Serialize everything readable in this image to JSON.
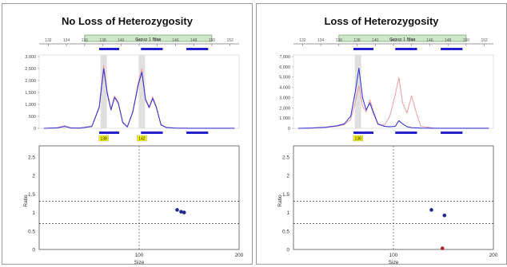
{
  "panels": [
    {
      "title": "No Loss of Heterozygosity",
      "bin_label": "Group 1 Blue",
      "size_ticks": [
        132,
        134,
        136,
        138,
        140,
        142,
        144,
        146,
        148,
        150,
        152
      ],
      "electro_y_ticks": [
        "3,000",
        "2,500",
        "2,000",
        "1,500",
        "1,000",
        "500",
        "0"
      ],
      "peak_labels": [
        "138",
        "142"
      ],
      "ratio_y_ticks": [
        "2.5",
        "2",
        "1.5",
        "1",
        "0.5",
        "0"
      ],
      "ratio_x_ticks": [
        "100",
        "200"
      ],
      "ratio_ylabel": "Ratio",
      "ratio_xlabel": "Size"
    },
    {
      "title": "Loss of Heterozygosity",
      "bin_label": "Group 1 Blue",
      "size_ticks": [
        132,
        134,
        136,
        138,
        140,
        142,
        144,
        146,
        148,
        150,
        152
      ],
      "electro_y_ticks": [
        "7,000",
        "6,000",
        "5,000",
        "4,000",
        "3,000",
        "2,000",
        "1,000",
        "0"
      ],
      "peak_labels": [
        "138"
      ],
      "ratio_y_ticks": [
        "2.5",
        "2",
        "1.5",
        "1",
        "0.5",
        "0"
      ],
      "ratio_x_ticks": [
        "100",
        "200"
      ],
      "ratio_ylabel": "Ratio",
      "ratio_xlabel": "Size"
    }
  ],
  "chart_data": [
    {
      "type": "line",
      "xlim": [
        131,
        153
      ],
      "ylim": [
        0,
        3200
      ],
      "series": [
        {
          "color": "#3b3bd6",
          "x": [
            131.5,
            133,
            133.8,
            134.5,
            135.5,
            136.8,
            137.6,
            138.1,
            138.5,
            138.9,
            139.3,
            139.7,
            140.2,
            140.7,
            141.3,
            141.9,
            142.3,
            142.7,
            143.1,
            143.5,
            143.9,
            144.4,
            145,
            146,
            147.5,
            149,
            151,
            152.5
          ],
          "y": [
            0,
            20,
            80,
            15,
            10,
            80,
            900,
            2600,
            1500,
            800,
            1350,
            1100,
            250,
            60,
            700,
            1900,
            2450,
            1250,
            900,
            1300,
            900,
            150,
            30,
            10,
            5,
            5,
            5,
            5
          ]
        },
        {
          "color": "#ee9c9c",
          "x": [
            131.5,
            133,
            133.8,
            134.5,
            135.5,
            136.8,
            137.6,
            138.1,
            138.5,
            138.9,
            139.3,
            139.7,
            140.2,
            140.7,
            141.3,
            141.9,
            142.3,
            142.7,
            143.1,
            143.5,
            143.9,
            144.4,
            145,
            146,
            147.5,
            149,
            151,
            152.5
          ],
          "y": [
            0,
            30,
            110,
            25,
            15,
            100,
            950,
            2750,
            1600,
            850,
            1420,
            1150,
            280,
            70,
            750,
            2000,
            2600,
            1300,
            950,
            1380,
            950,
            170,
            40,
            15,
            5,
            5,
            5,
            5
          ]
        }
      ],
      "bins": [
        {
          "from": 137.6,
          "to": 139.8
        },
        {
          "from": 142.2,
          "to": 144.6
        },
        {
          "from": 147.2,
          "to": 149.6
        }
      ],
      "highlight_columns": [
        138.1,
        142.3
      ]
    },
    {
      "type": "scatter",
      "xlim": [
        0,
        200
      ],
      "ylim": [
        0,
        2.8
      ],
      "gridlines_y": [
        1.3,
        0.7
      ],
      "gridline_x": 100,
      "points": [
        {
          "x": 138,
          "y": 1.07,
          "color": "#1f2a8a"
        },
        {
          "x": 142,
          "y": 1.02,
          "color": "#1f2a8a"
        },
        {
          "x": 145,
          "y": 1.0,
          "color": "#1f2a8a"
        }
      ]
    },
    {
      "type": "line",
      "xlim": [
        131,
        153
      ],
      "ylim": [
        0,
        7200
      ],
      "series": [
        {
          "color": "#3b3bd6",
          "x": [
            131.5,
            133,
            134.5,
            135.8,
            136.6,
            137.3,
            137.8,
            138.2,
            138.6,
            139,
            139.4,
            139.8,
            140.3,
            141,
            141.6,
            142.2,
            142.6,
            143,
            143.5,
            144,
            145,
            146.5,
            148,
            150,
            152.5
          ],
          "y": [
            0,
            30,
            100,
            250,
            450,
            1200,
            3600,
            5900,
            3000,
            1800,
            2500,
            1500,
            400,
            200,
            150,
            200,
            750,
            450,
            150,
            60,
            20,
            10,
            5,
            5,
            5
          ]
        },
        {
          "color": "#ee9c9c",
          "x": [
            131.5,
            133,
            134.5,
            135.8,
            136.6,
            137.3,
            137.8,
            138.2,
            138.6,
            139,
            139.4,
            139.8,
            140.3,
            141,
            141.6,
            142.2,
            142.6,
            143,
            143.5,
            144,
            144.5,
            145,
            146.5,
            148,
            150,
            152.5
          ],
          "y": [
            0,
            20,
            80,
            200,
            350,
            900,
            2600,
            4200,
            2200,
            1600,
            2800,
            1700,
            450,
            300,
            1200,
            3300,
            5000,
            2500,
            1500,
            3200,
            1600,
            200,
            20,
            5,
            5,
            5
          ]
        }
      ],
      "bins": [
        {
          "from": 137.6,
          "to": 139.8
        },
        {
          "from": 142.2,
          "to": 144.6
        },
        {
          "from": 147.2,
          "to": 149.6
        }
      ],
      "highlight_columns": [
        138.1
      ]
    },
    {
      "type": "scatter",
      "xlim": [
        0,
        200
      ],
      "ylim": [
        0,
        2.8
      ],
      "gridlines_y": [
        1.3,
        0.7
      ],
      "gridline_x": 100,
      "points": [
        {
          "x": 138,
          "y": 1.07,
          "color": "#1f2a8a"
        },
        {
          "x": 151,
          "y": 0.92,
          "color": "#1f2a8a"
        },
        {
          "x": 149,
          "y": 0.03,
          "color": "#b3261e"
        }
      ]
    }
  ]
}
